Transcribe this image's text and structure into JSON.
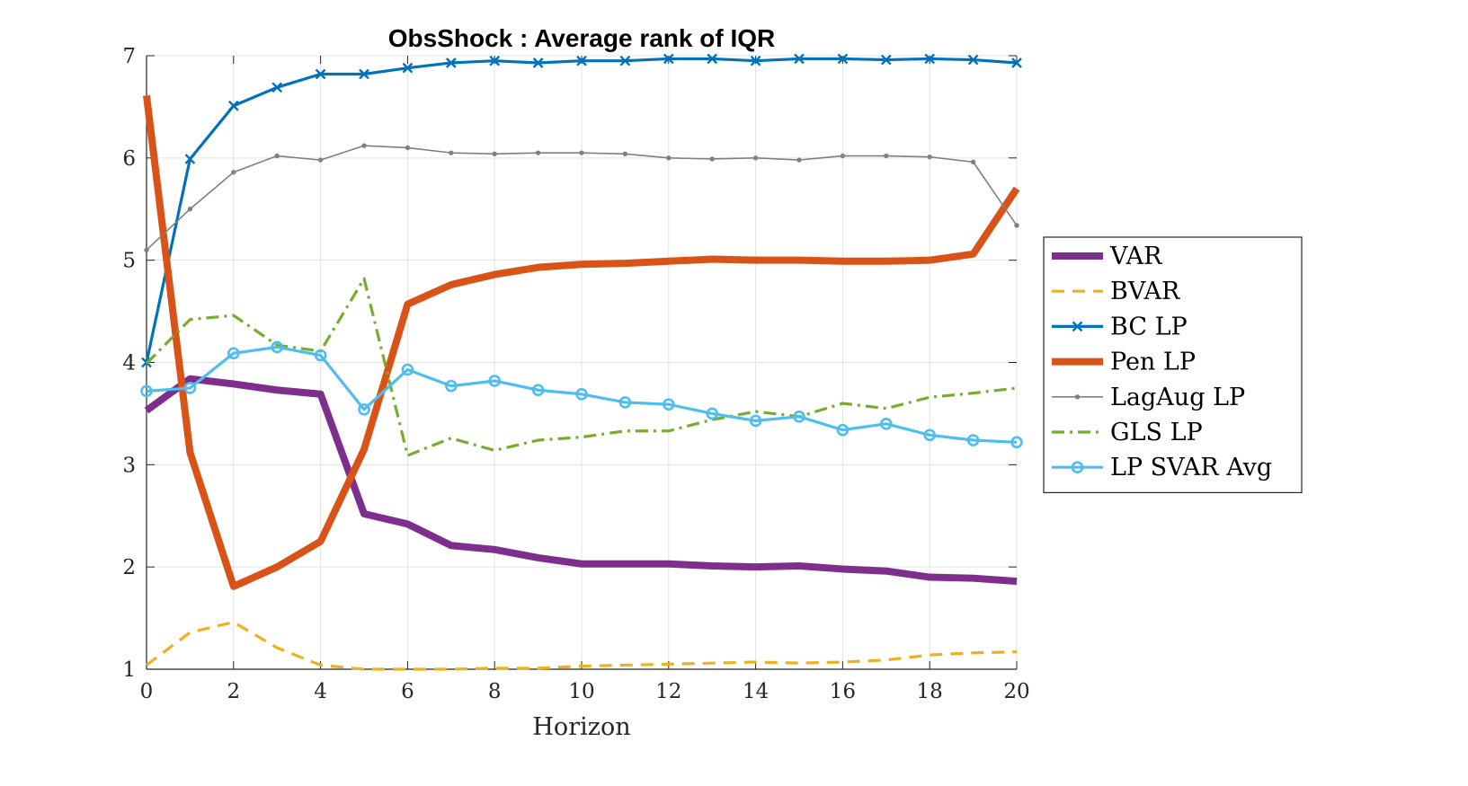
{
  "chart_data": {
    "type": "line",
    "title": "ObsShock : Average rank of IQR",
    "xlabel": "Horizon",
    "ylabel": "",
    "xlim": [
      0,
      20
    ],
    "ylim": [
      1,
      7
    ],
    "xticks": [
      0,
      2,
      4,
      6,
      8,
      10,
      12,
      14,
      16,
      18,
      20
    ],
    "yticks": [
      1,
      2,
      3,
      4,
      5,
      6,
      7
    ],
    "grid": true,
    "legend_position": "right",
    "x": [
      0,
      1,
      2,
      3,
      4,
      5,
      6,
      7,
      8,
      9,
      10,
      11,
      12,
      13,
      14,
      15,
      16,
      17,
      18,
      19,
      20
    ],
    "series": [
      {
        "name": "VAR",
        "color": "#7E2F8E",
        "style": "solid-thick",
        "marker": "none",
        "values": [
          3.53,
          3.84,
          3.79,
          3.73,
          3.69,
          2.52,
          2.42,
          2.21,
          2.17,
          2.09,
          2.03,
          2.03,
          2.03,
          2.01,
          2.0,
          2.01,
          1.98,
          1.96,
          1.9,
          1.89,
          1.86
        ]
      },
      {
        "name": "BVAR",
        "color": "#EDB120",
        "style": "dashed",
        "marker": "none",
        "values": [
          1.04,
          1.36,
          1.46,
          1.21,
          1.04,
          1.0,
          1.0,
          1.0,
          1.01,
          1.01,
          1.03,
          1.04,
          1.05,
          1.06,
          1.07,
          1.06,
          1.07,
          1.09,
          1.14,
          1.16,
          1.17
        ]
      },
      {
        "name": "BC LP",
        "color": "#0072BD",
        "style": "solid",
        "marker": "x",
        "values": [
          4.0,
          5.99,
          6.51,
          6.69,
          6.82,
          6.82,
          6.88,
          6.93,
          6.95,
          6.93,
          6.95,
          6.95,
          6.97,
          6.97,
          6.95,
          6.97,
          6.97,
          6.96,
          6.97,
          6.96,
          6.93
        ]
      },
      {
        "name": "Pen LP",
        "color": "#D95319",
        "style": "solid-thick",
        "marker": "none",
        "values": [
          6.61,
          3.12,
          1.81,
          2.0,
          2.25,
          3.15,
          4.57,
          4.76,
          4.86,
          4.93,
          4.96,
          4.97,
          4.99,
          5.01,
          5.0,
          5.0,
          4.99,
          4.99,
          5.0,
          5.06,
          5.7
        ]
      },
      {
        "name": "LagAug LP",
        "color": "#808080",
        "style": "solid-thin",
        "marker": "dot",
        "values": [
          5.1,
          5.5,
          5.86,
          6.02,
          5.98,
          6.12,
          6.1,
          6.05,
          6.04,
          6.05,
          6.05,
          6.04,
          6.0,
          5.99,
          6.0,
          5.98,
          6.02,
          6.02,
          6.01,
          5.96,
          5.34
        ]
      },
      {
        "name": "GLS LP",
        "color": "#77AC30",
        "style": "dashdot",
        "marker": "none",
        "values": [
          3.99,
          4.42,
          4.46,
          4.17,
          4.11,
          4.82,
          3.09,
          3.26,
          3.14,
          3.24,
          3.27,
          3.33,
          3.33,
          3.44,
          3.52,
          3.47,
          3.6,
          3.55,
          3.66,
          3.7,
          3.75
        ]
      },
      {
        "name": "LP SVAR Avg",
        "color": "#4DBEEE",
        "style": "solid",
        "marker": "circle",
        "values": [
          3.72,
          3.75,
          4.09,
          4.15,
          4.07,
          3.54,
          3.93,
          3.77,
          3.82,
          3.73,
          3.69,
          3.61,
          3.59,
          3.5,
          3.43,
          3.47,
          3.34,
          3.4,
          3.29,
          3.24,
          3.22
        ]
      }
    ]
  }
}
